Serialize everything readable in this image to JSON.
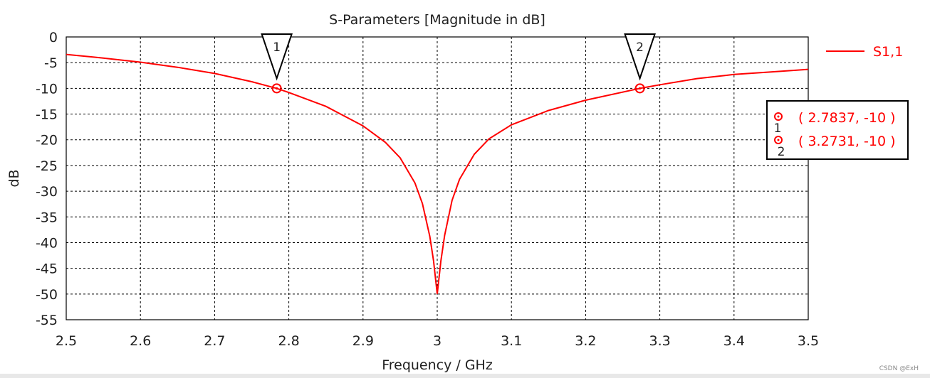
{
  "chart_data": {
    "type": "line",
    "title": "S-Parameters [Magnitude in dB]",
    "xlabel": "Frequency / GHz",
    "ylabel": "dB",
    "xlim": [
      2.5,
      3.5
    ],
    "ylim": [
      -55,
      0
    ],
    "xticks": [
      2.5,
      2.6,
      2.7,
      2.8,
      2.9,
      3,
      3.1,
      3.2,
      3.3,
      3.4,
      3.5
    ],
    "yticks": [
      0,
      -5,
      -10,
      -15,
      -20,
      -25,
      -30,
      -35,
      -40,
      -45,
      -50,
      -55
    ],
    "grid": true,
    "legend_position": "right",
    "series": [
      {
        "name": "S1,1",
        "color": "#ff0000",
        "x": [
          2.5,
          2.55,
          2.6,
          2.65,
          2.7,
          2.75,
          2.7837,
          2.8,
          2.85,
          2.9,
          2.93,
          2.95,
          2.97,
          2.98,
          2.99,
          2.995,
          3.0,
          3.005,
          3.01,
          3.02,
          3.03,
          3.05,
          3.07,
          3.1,
          3.15,
          3.2,
          3.2731,
          3.3,
          3.35,
          3.4,
          3.45,
          3.5
        ],
        "y": [
          -3.4,
          -4.1,
          -4.9,
          -5.9,
          -7.1,
          -8.7,
          -10,
          -10.8,
          -13.5,
          -17.3,
          -20.5,
          -23.5,
          -28.4,
          -32.4,
          -38.8,
          -43.5,
          -50,
          -43.5,
          -38.6,
          -31.8,
          -27.7,
          -22.8,
          -19.8,
          -17.1,
          -14.3,
          -12.3,
          -10,
          -9.3,
          -8.1,
          -7.3,
          -6.8,
          -6.3
        ]
      }
    ],
    "markers": [
      {
        "label": "1",
        "x": 2.7837,
        "y": -10,
        "readout": "( 2.7837, -10 )"
      },
      {
        "label": "2",
        "x": 3.2731,
        "y": -10,
        "readout": "( 3.2731, -10 )"
      }
    ]
  },
  "watermark": "CSDN @ExH"
}
